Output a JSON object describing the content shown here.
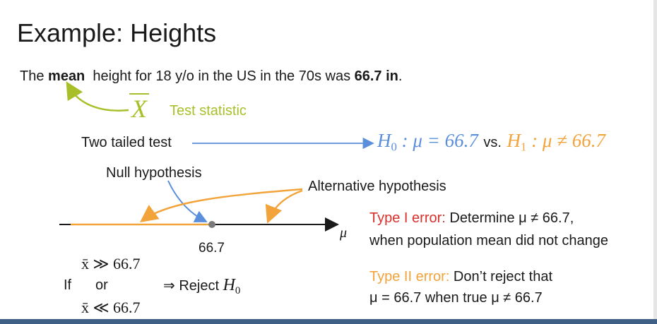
{
  "slide": {
    "title": "Example: Heights",
    "intro": {
      "prefix": "The ",
      "bold_word": "mean",
      "middle": "height for 18 y/o in the US in the 70s was ",
      "bold_value": "66.7 in",
      "suffix": "."
    },
    "statistic": {
      "symbol": "X",
      "label": "Test statistic"
    },
    "two_tailed": {
      "label": "Two tailed test",
      "h0_symbol": "H",
      "h0_sub": "0",
      "h0_expr": ": μ = 66.7",
      "vs": "vs.",
      "h1_symbol": "H",
      "h1_sub": "1",
      "h1_expr": ": μ ≠ 66.7"
    },
    "null_label": "Null hypothesis",
    "alt_label": "Alternative hypothesis",
    "number_line": {
      "tick_label": "66.7",
      "axis_symbol": "μ"
    },
    "rule": {
      "if": "If",
      "or": "or",
      "cond1": "x̄ ≫ 66.7",
      "cond2": "x̄ ≪ 66.7",
      "implies": "⇒ Reject",
      "h_symbol": "H",
      "h_sub": "0"
    },
    "type1": {
      "label": "Type I error:",
      "line1": " Determine μ ≠ 66.7,",
      "line2": "when population mean did not change"
    },
    "type2": {
      "label": "Type II error:",
      "line1": " Don’t reject that",
      "line2": "μ = 66.7 when true μ ≠ 66.7"
    }
  },
  "colors": {
    "green": "#a9bf2a",
    "blue": "#5b8fdc",
    "orange": "#f2a33a",
    "red": "#d9302a",
    "text": "#1a1a1a",
    "bar": "#3f5f86"
  }
}
